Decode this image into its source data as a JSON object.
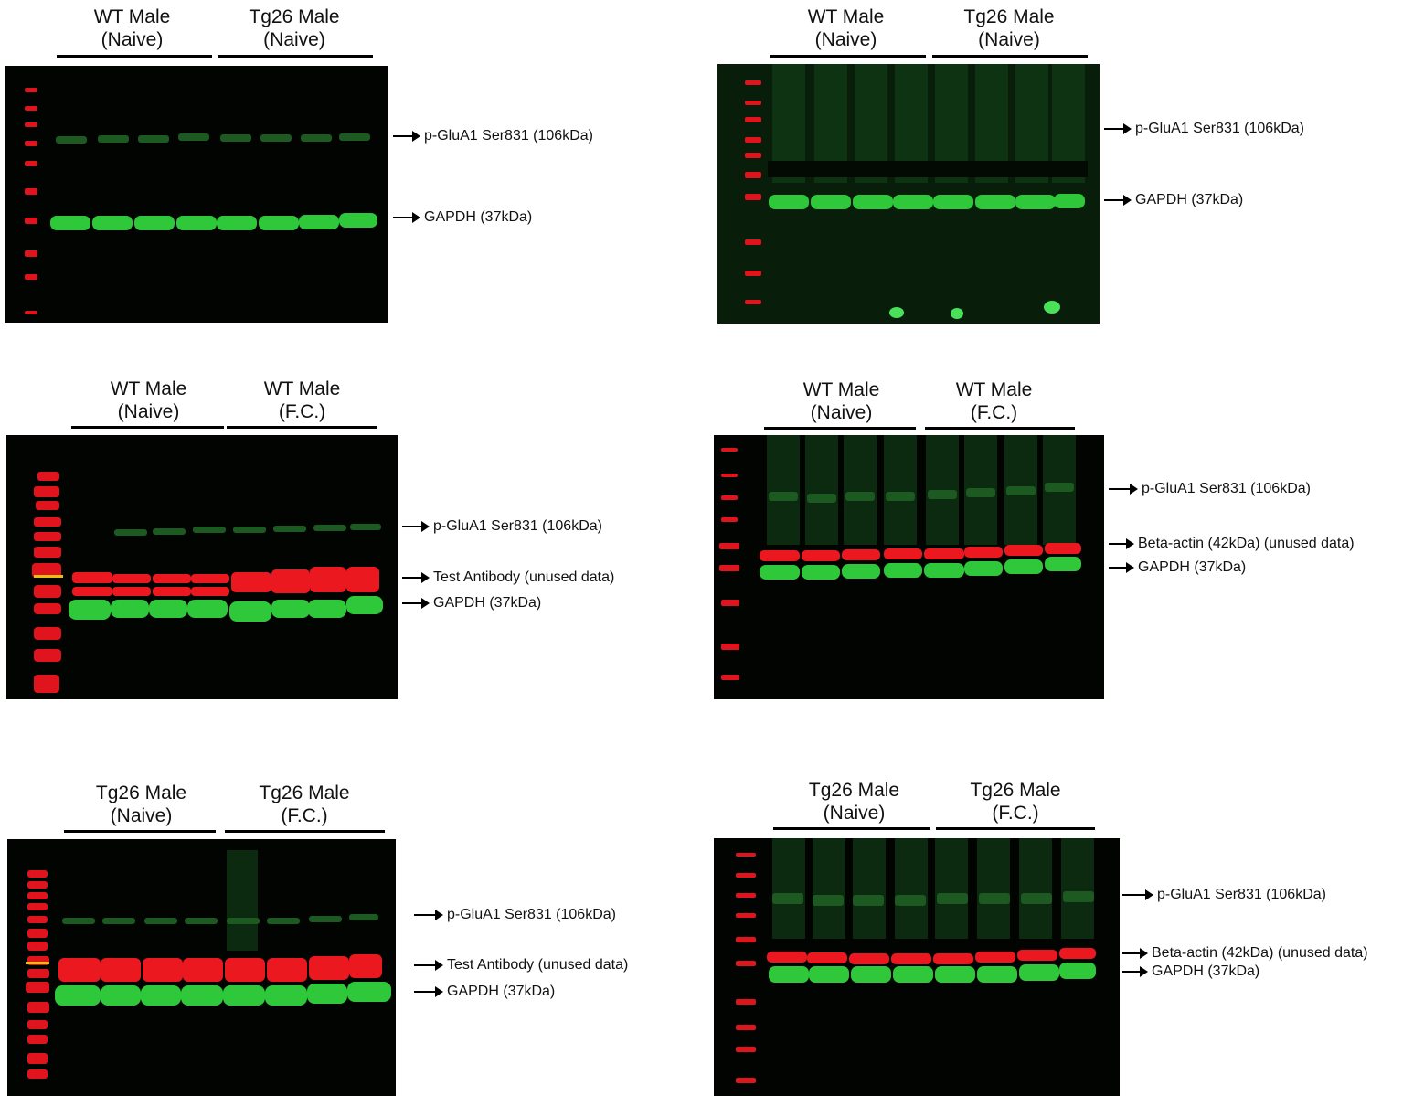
{
  "panels": [
    {
      "groups": [
        {
          "line1": "WT Male",
          "line2": "(Naive)"
        },
        {
          "line1": "Tg26 Male",
          "line2": "(Naive)"
        }
      ],
      "annotations": [
        "p-GluA1 Ser831 (106kDa)",
        "GAPDH (37kDa)"
      ]
    },
    {
      "groups": [
        {
          "line1": "WT Male",
          "line2": "(Naive)"
        },
        {
          "line1": "Tg26 Male",
          "line2": "(Naive)"
        }
      ],
      "annotations": [
        "p-GluA1 Ser831 (106kDa)",
        "GAPDH (37kDa)"
      ]
    },
    {
      "groups": [
        {
          "line1": "WT Male",
          "line2": "(Naive)"
        },
        {
          "line1": "WT Male",
          "line2": "(F.C.)"
        }
      ],
      "annotations": [
        "p-GluA1 Ser831 (106kDa)",
        "Test Antibody (unused data)",
        "GAPDH (37kDa)"
      ]
    },
    {
      "groups": [
        {
          "line1": "WT Male",
          "line2": "(Naive)"
        },
        {
          "line1": "WT Male",
          "line2": "(F.C.)"
        }
      ],
      "annotations": [
        "p-GluA1 Ser831 (106kDa)",
        "Beta-actin (42kDa) (unused data)",
        "GAPDH (37kDa)"
      ]
    },
    {
      "groups": [
        {
          "line1": "Tg26 Male",
          "line2": "(Naive)"
        },
        {
          "line1": "Tg26 Male",
          "line2": "(F.C.)"
        }
      ],
      "annotations": [
        "p-GluA1 Ser831 (106kDa)",
        "Test Antibody (unused data)",
        "GAPDH (37kDa)"
      ]
    },
    {
      "groups": [
        {
          "line1": "Tg26 Male",
          "line2": "(Naive)"
        },
        {
          "line1": "Tg26 Male",
          "line2": "(F.C.)"
        }
      ],
      "annotations": [
        "p-GluA1 Ser831 (106kDa)",
        "Beta-actin (42kDa) (unused data)",
        "GAPDH (37kDa)"
      ]
    }
  ],
  "colors": {
    "blot_background": "#020402",
    "ladder_red": "#e0141c",
    "band_red": "#ec1820",
    "band_green": "#2ec83a",
    "faint_green": "#1d5a22"
  }
}
